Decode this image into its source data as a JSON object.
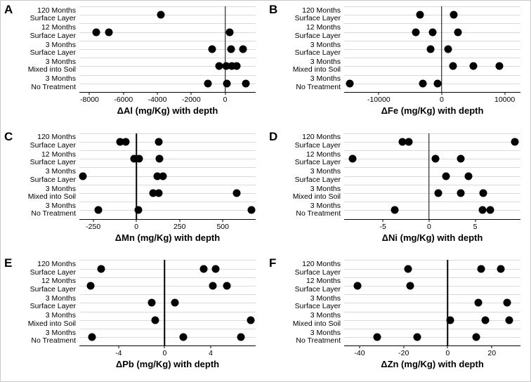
{
  "figure": {
    "dot_color": "#000000",
    "grid_color": "#dadada",
    "categories": [
      {
        "line1": "120 Months",
        "line2": "Surface Layer"
      },
      {
        "line1": "12 Months",
        "line2": "Surface Layer"
      },
      {
        "line1": "3 Months",
        "line2": "Surface Layer"
      },
      {
        "line1": "3 Months",
        "line2": "Mixed into Soil"
      },
      {
        "line1": "3 Months",
        "line2": "No Treatment"
      }
    ]
  },
  "chart_data": [
    {
      "type": "scatter",
      "panel": "A",
      "xlabel": "ΔAl (mg/Kg) with depth",
      "xlim": [
        -8600,
        1800
      ],
      "xticks": [
        -8000,
        -6000,
        -4000,
        -2000,
        0
      ],
      "grid": true,
      "legend": false,
      "categories": [
        "120 Months Surface Layer",
        "12 Months Surface Layer",
        "3 Months Surface Layer",
        "3 Months Mixed into Soil",
        "3 Months No Treatment"
      ],
      "values_by_category": [
        [
          -3800
        ],
        [
          -7600,
          -6850,
          250
        ],
        [
          -750,
          350,
          1050
        ],
        [
          -350,
          50,
          400,
          700
        ],
        [
          -1000,
          100,
          1200
        ]
      ]
    },
    {
      "type": "scatter",
      "panel": "B",
      "xlabel": "ΔFe (mg/Kg) with depth",
      "xlim": [
        -15500,
        12500
      ],
      "xticks": [
        -10000,
        0,
        10000
      ],
      "grid": true,
      "legend": false,
      "categories": [
        "120 Months Surface Layer",
        "12 Months Surface Layer",
        "3 Months Surface Layer",
        "3 Months Mixed into Soil",
        "3 Months No Treatment"
      ],
      "values_by_category": [
        [
          -3400,
          1900
        ],
        [
          -4100,
          -1400,
          2600
        ],
        [
          -1800,
          1000
        ],
        [
          1800,
          5000,
          9200
        ],
        [
          -14600,
          -3000,
          -700
        ]
      ]
    },
    {
      "type": "scatter",
      "panel": "C",
      "xlabel": "ΔMn (mg/Kg) with depth",
      "xlim": [
        -330,
        690
      ],
      "xticks": [
        -250,
        0,
        250,
        500
      ],
      "grid": true,
      "legend": false,
      "categories": [
        "120 Months Surface Layer",
        "12 Months Surface Layer",
        "3 Months Surface Layer",
        "3 Months Mixed into Soil",
        "3 Months No Treatment"
      ],
      "values_by_category": [
        [
          -95,
          -60,
          130
        ],
        [
          -15,
          15,
          135
        ],
        [
          -310,
          120,
          155
        ],
        [
          95,
          130,
          580
        ],
        [
          -220,
          10,
          665
        ]
      ]
    },
    {
      "type": "scatter",
      "panel": "D",
      "xlabel": "ΔNi (mg/Kg) with depth",
      "xlim": [
        -9.2,
        9.9
      ],
      "xticks": [
        -5,
        0,
        5
      ],
      "grid": true,
      "legend": false,
      "categories": [
        "120 Months Surface Layer",
        "12 Months Surface Layer",
        "3 Months Surface Layer",
        "3 Months Mixed into Soil",
        "3 Months No Treatment"
      ],
      "values_by_category": [
        [
          -2.9,
          -2.2,
          9.3
        ],
        [
          -8.3,
          0.7,
          3.4
        ],
        [
          1.8,
          4.3
        ],
        [
          1.0,
          3.4,
          5.9
        ],
        [
          -3.7,
          5.8,
          6.6
        ]
      ]
    },
    {
      "type": "scatter",
      "panel": "E",
      "xlabel": "ΔPb (mg/Kg) with depth",
      "xlim": [
        -7.4,
        7.9
      ],
      "xticks": [
        -4,
        0,
        4
      ],
      "grid": true,
      "legend": false,
      "categories": [
        "120 Months Surface Layer",
        "12 Months Surface Layer",
        "3 Months Surface Layer",
        "3 Months Mixed into Soil",
        "3 Months No Treatment"
      ],
      "values_by_category": [
        [
          -5.5,
          3.4,
          4.4
        ],
        [
          -6.4,
          4.2,
          5.4
        ],
        [
          -1.1,
          0.9
        ],
        [
          -0.8,
          7.5
        ],
        [
          -6.3,
          1.6,
          6.6
        ]
      ]
    },
    {
      "type": "scatter",
      "panel": "F",
      "xlabel": "ΔZn (mg/Kg) with depth",
      "xlim": [
        -47,
        33
      ],
      "xticks": [
        -40,
        -20,
        0,
        20
      ],
      "grid": true,
      "legend": false,
      "categories": [
        "120 Months Surface Layer",
        "12 Months Surface Layer",
        "3 Months Surface Layer",
        "3 Months Mixed into Soil",
        "3 Months No Treatment"
      ],
      "values_by_category": [
        [
          -18,
          15,
          24
        ],
        [
          -41,
          -17
        ],
        [
          14,
          27
        ],
        [
          1,
          17,
          28
        ],
        [
          -32,
          -14,
          13
        ]
      ]
    }
  ]
}
